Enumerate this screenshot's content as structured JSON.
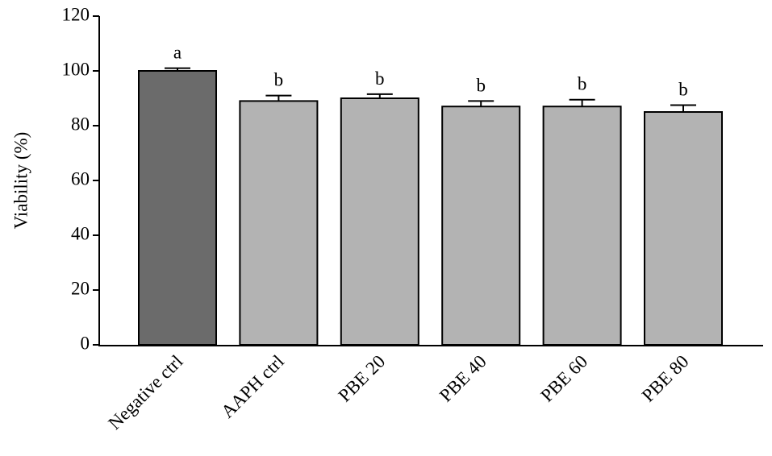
{
  "chart_data": {
    "type": "bar",
    "y_label": "Viability (%)",
    "categories": [
      "Negative ctrl",
      "AAPH ctrl",
      "PBE 20",
      "PBE 40",
      "PBE 60",
      "PBE 80"
    ],
    "values": [
      100,
      89,
      90,
      87,
      87,
      85
    ],
    "errors": [
      1,
      2,
      1.5,
      2,
      2.5,
      2.5
    ],
    "colors": [
      "#6b6b6b",
      "#b3b3b3",
      "#b3b3b3",
      "#b3b3b3",
      "#b3b3b3",
      "#b3b3b3"
    ],
    "annotations": [
      "a",
      "b",
      "b",
      "b",
      "b",
      "b"
    ],
    "ylim": [
      0,
      120
    ],
    "yticks": [
      0,
      20,
      40,
      60,
      80,
      100,
      120
    ]
  }
}
